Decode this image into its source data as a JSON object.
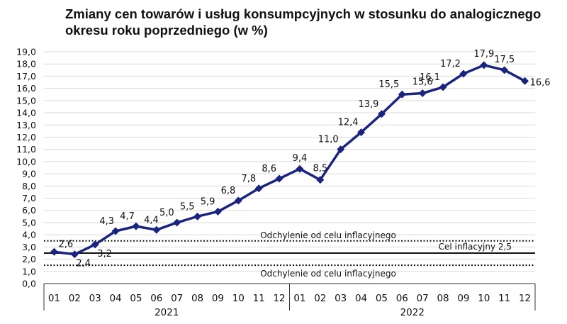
{
  "title": {
    "line1": "Zmiany cen towarów i usług konsumpcyjnych w stosunku do analogicznego",
    "line2": "okresu roku poprzedniego (w %)"
  },
  "chart_data": {
    "type": "line",
    "title": "Zmiany cen towarów i usług konsumpcyjnych w stosunku do analogicznego okresu roku poprzedniego (w %)",
    "ylim": [
      0,
      19
    ],
    "yticks": [
      "0,0",
      "1,0",
      "2,0",
      "3,0",
      "4,0",
      "5,0",
      "6,0",
      "7,0",
      "8,0",
      "9,0",
      "10,0",
      "11,0",
      "12,0",
      "13,0",
      "14,0",
      "15,0",
      "16,0",
      "17,0",
      "18,0",
      "19,0"
    ],
    "grid": true,
    "categories": [
      "01",
      "02",
      "03",
      "04",
      "05",
      "06",
      "07",
      "08",
      "09",
      "10",
      "11",
      "12",
      "01",
      "02",
      "03",
      "04",
      "05",
      "06",
      "07",
      "08",
      "09",
      "10",
      "11",
      "12"
    ],
    "years": [
      "2021",
      "2022"
    ],
    "series": [
      {
        "values": [
          2.6,
          2.4,
          3.2,
          4.3,
          4.7,
          4.4,
          5.0,
          5.5,
          5.9,
          6.8,
          7.8,
          8.6,
          9.4,
          8.5,
          11.0,
          12.4,
          13.9,
          15.5,
          15.6,
          16.1,
          17.2,
          17.9,
          17.5,
          16.6
        ],
        "labels": [
          "2,6",
          "2,4",
          "3,2",
          "4,3",
          "4,7",
          "4,4",
          "5,0",
          "5,5",
          "5,9",
          "6,8",
          "7,8",
          "8,6",
          "9,4",
          "8,5",
          "11,0",
          "12,4",
          "13,9",
          "15,5",
          "15,6",
          "16,1",
          "17,2",
          "17,9",
          "17,5",
          "16,6"
        ],
        "color": "#1a237e"
      }
    ],
    "reference_lines": [
      {
        "value": 3.5,
        "style": "dotted",
        "label": "Odchylenie od celu inflacyjnego"
      },
      {
        "value": 2.5,
        "style": "solid",
        "label": "Cel inflacyjny 2,5"
      },
      {
        "value": 1.5,
        "style": "dotted",
        "label": "Odchylenie od celu inflacyjnego"
      }
    ]
  }
}
